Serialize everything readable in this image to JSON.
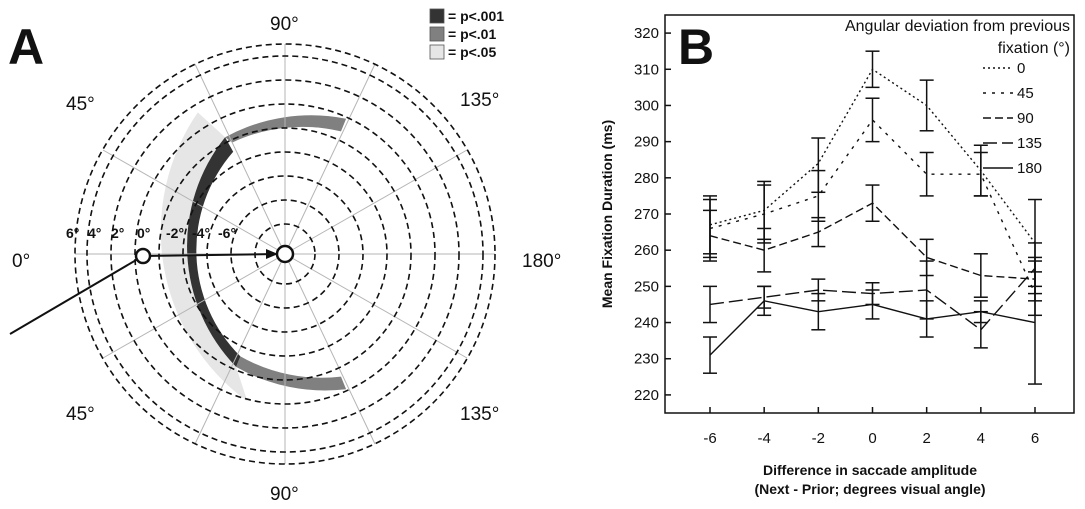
{
  "panel_a": {
    "letter": "A",
    "angle_labels": [
      "90°",
      "45°",
      "135°",
      "0°",
      "180°",
      "45°",
      "135°",
      "90°"
    ],
    "ring_labels": [
      "6°",
      "4°",
      "2°",
      "0°",
      "-2°",
      "-4°",
      "-6°"
    ],
    "legend": [
      {
        "label": "= p<.001",
        "color": "#333333"
      },
      {
        "label": "= p<.01",
        "color": "#808080"
      },
      {
        "label": "= p<.05",
        "color": "#e6e6e6"
      }
    ]
  },
  "panel_b": {
    "letter": "B"
  },
  "chart_data": {
    "type": "line",
    "legend_title_line1": "Angular deviation from previous",
    "legend_title_line2": "fixation (°)",
    "legend_position": "top-right",
    "xlabel_line1": "Difference in saccade amplitude",
    "xlabel_line2": "(Next - Prior; degrees visual angle)",
    "ylabel": "Mean Fixation Duration (ms)",
    "x": [
      -6,
      -4,
      -2,
      0,
      2,
      4,
      6
    ],
    "x_tick_labels": [
      "-6",
      "-4",
      "-2",
      "0",
      "2",
      "4",
      "6"
    ],
    "ylim": [
      215,
      325
    ],
    "y_ticks": [
      220,
      230,
      240,
      250,
      260,
      270,
      280,
      290,
      300,
      310,
      320
    ],
    "series": [
      {
        "name": "0",
        "dash": "2,3",
        "values": [
          267,
          271,
          284,
          310,
          300,
          282,
          262
        ],
        "err_lo": [
          259,
          263,
          276,
          305,
          293,
          275,
          250
        ],
        "err_hi": [
          275,
          279,
          291,
          315,
          307,
          289,
          274
        ]
      },
      {
        "name": "45",
        "dash": "3,6",
        "values": [
          266,
          270,
          275,
          296,
          281,
          281,
          248
        ],
        "err_lo": [
          258,
          262,
          268,
          290,
          275,
          275,
          242
        ],
        "err_hi": [
          274,
          278,
          282,
          302,
          287,
          287,
          254
        ]
      },
      {
        "name": "90",
        "dash": "8,4",
        "values": [
          264,
          260,
          265,
          273,
          258,
          253,
          252
        ],
        "err_lo": [
          257,
          254,
          261,
          268,
          253,
          247,
          246
        ],
        "err_hi": [
          271,
          266,
          269,
          278,
          263,
          259,
          258
        ]
      },
      {
        "name": "135",
        "dash": "14,5",
        "values": [
          245,
          247,
          249,
          248,
          249,
          238,
          255
        ],
        "err_lo": [
          240,
          244,
          246,
          245,
          241,
          233,
          248
        ],
        "err_hi": [
          250,
          250,
          252,
          251,
          257,
          243,
          262
        ]
      },
      {
        "name": "180",
        "dash": "",
        "values": [
          231,
          246,
          243,
          245,
          241,
          243,
          240
        ],
        "err_lo": [
          226,
          242,
          238,
          241,
          236,
          240,
          223
        ],
        "err_hi": [
          236,
          250,
          248,
          249,
          246,
          246,
          257
        ]
      }
    ]
  }
}
